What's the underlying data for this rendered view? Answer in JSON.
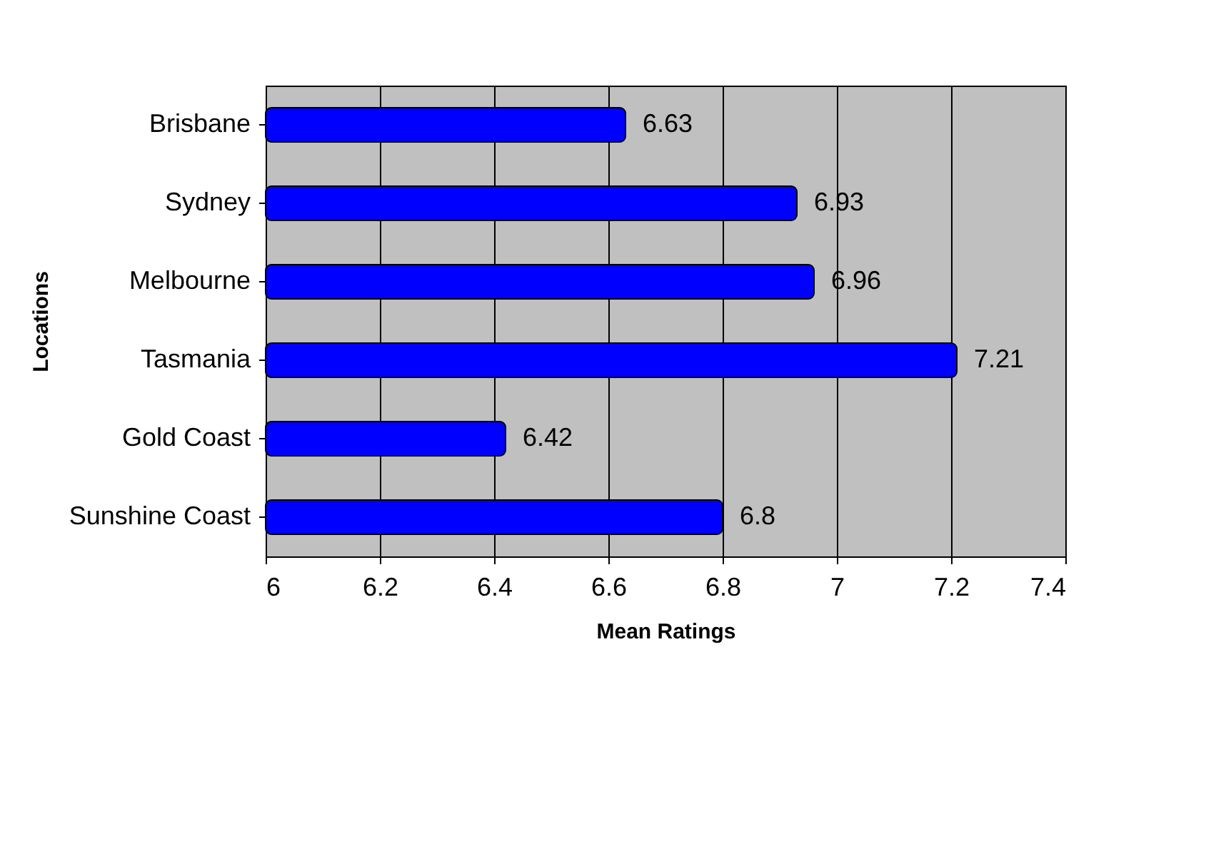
{
  "chart_data": {
    "type": "bar",
    "orientation": "horizontal",
    "xlabel": "Mean Ratings",
    "ylabel": "Locations",
    "categories": [
      "Brisbane",
      "Sydney",
      "Melbourne",
      "Tasmania",
      "Gold Coast",
      "Sunshine Coast"
    ],
    "values": [
      6.63,
      6.93,
      6.96,
      7.21,
      6.42,
      6.8
    ],
    "color": "#0000ff",
    "xlim": [
      6,
      7.4
    ],
    "xticks": [
      6,
      6.2,
      6.4,
      6.6,
      6.8,
      7,
      7.2,
      7.4
    ],
    "grid": "x",
    "data_labels": true
  }
}
